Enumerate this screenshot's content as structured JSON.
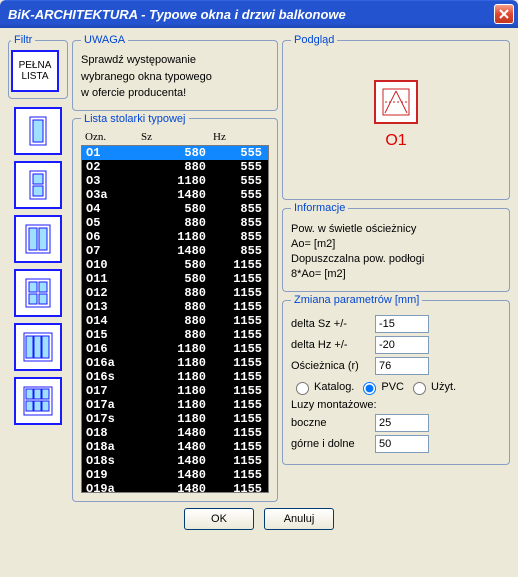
{
  "window": {
    "title": "BiK-ARCHITEKTURA - Typowe okna i drzwi balkonowe"
  },
  "sections": {
    "filter": "Filtr",
    "uwaga": "UWAGA",
    "lista": "Lista stolarki typowej",
    "podglad": "Podgląd",
    "info": "Informacje",
    "zmiana": "Zmiana parametrów [mm]"
  },
  "filter": {
    "full_list_line1": "PEŁNA",
    "full_list_line2": "LISTA"
  },
  "uwaga": {
    "line1": "Sprawdź występowanie",
    "line2": "wybranego okna typowego",
    "line3": "w ofercie producenta!"
  },
  "list_header": {
    "c1": "Ozn.",
    "c2": "Sz",
    "c3": "Hz"
  },
  "rows": [
    {
      "ozn": "O1",
      "sz": "580",
      "hz": "555",
      "sel": true
    },
    {
      "ozn": "O2",
      "sz": "880",
      "hz": "555"
    },
    {
      "ozn": "O3",
      "sz": "1180",
      "hz": "555"
    },
    {
      "ozn": "O3a",
      "sz": "1480",
      "hz": "555"
    },
    {
      "ozn": "O4",
      "sz": "580",
      "hz": "855"
    },
    {
      "ozn": "O5",
      "sz": "880",
      "hz": "855"
    },
    {
      "ozn": "O6",
      "sz": "1180",
      "hz": "855"
    },
    {
      "ozn": "O7",
      "sz": "1480",
      "hz": "855"
    },
    {
      "ozn": "O10",
      "sz": "580",
      "hz": "1155"
    },
    {
      "ozn": "O11",
      "sz": "580",
      "hz": "1155"
    },
    {
      "ozn": "O12",
      "sz": "880",
      "hz": "1155"
    },
    {
      "ozn": "O13",
      "sz": "880",
      "hz": "1155"
    },
    {
      "ozn": "O14",
      "sz": "880",
      "hz": "1155"
    },
    {
      "ozn": "O15",
      "sz": "880",
      "hz": "1155"
    },
    {
      "ozn": "O16",
      "sz": "1180",
      "hz": "1155"
    },
    {
      "ozn": "O16a",
      "sz": "1180",
      "hz": "1155"
    },
    {
      "ozn": "O16s",
      "sz": "1180",
      "hz": "1155"
    },
    {
      "ozn": "O17",
      "sz": "1180",
      "hz": "1155"
    },
    {
      "ozn": "O17a",
      "sz": "1180",
      "hz": "1155"
    },
    {
      "ozn": "O17s",
      "sz": "1180",
      "hz": "1155"
    },
    {
      "ozn": "O18",
      "sz": "1480",
      "hz": "1155"
    },
    {
      "ozn": "O18a",
      "sz": "1480",
      "hz": "1155"
    },
    {
      "ozn": "O18s",
      "sz": "1480",
      "hz": "1155"
    },
    {
      "ozn": "O19",
      "sz": "1480",
      "hz": "1155"
    },
    {
      "ozn": "O19a",
      "sz": "1480",
      "hz": "1155"
    }
  ],
  "preview": {
    "label": "O1"
  },
  "info": {
    "line1": "Pow. w świetle ościeżnicy",
    "line2": "Ao= [m2]",
    "line3": "Dopuszczalna pow. podłogi",
    "line4": "8*Ao= [m2]"
  },
  "params": {
    "deltaSz_label": "delta Sz  +/-",
    "deltaSz": "-15",
    "deltaHz_label": "delta Hz  +/-",
    "deltaHz": "-20",
    "osc_label": "Ościeżnica (r)",
    "osc": "76",
    "radio_katalog": "Katalog.",
    "radio_pvc": "PVC",
    "radio_uzyt": "Użyt.",
    "luzy_label": "Luzy montażowe:",
    "boczne_label": "boczne",
    "boczne": "25",
    "gorne_label": "górne i dolne",
    "gorne": "50"
  },
  "buttons": {
    "ok": "OK",
    "cancel": "Anuluj"
  }
}
